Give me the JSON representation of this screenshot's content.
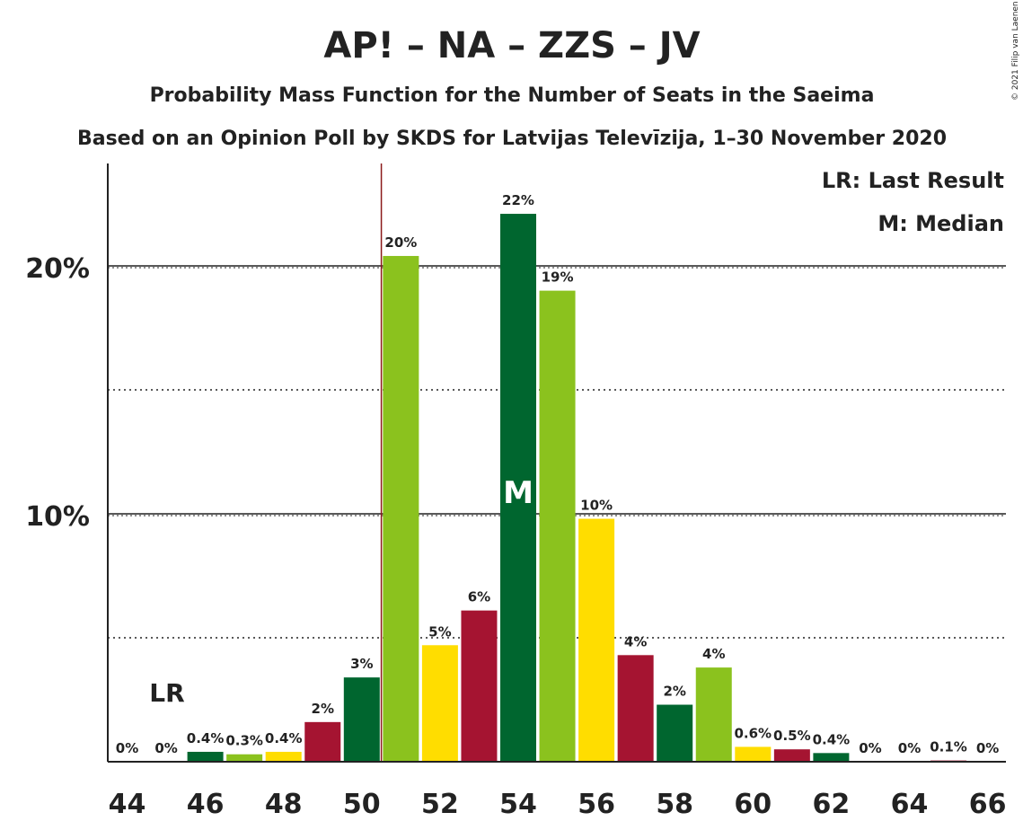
{
  "title": "AP! – NA – ZZS – JV",
  "subtitle1": "Probability Mass Function for the Number of Seats in the Saeima",
  "subtitle2": "Based on an Opinion Poll by SKDS for Latvijas Televīzija, 1–30 November 2020",
  "copyright": "© 2021 Filip van Laenen",
  "legend": {
    "lr": "LR: Last Result",
    "median": "M: Median"
  },
  "markers": {
    "last_result_label": "LR",
    "median_label": "M"
  },
  "colors": {
    "dark_green": "#00662F",
    "light_green": "#8BC21E",
    "yellow": "#FFDD00",
    "red": "#A51431",
    "last_result_line": "#8B1A1A"
  },
  "chart_data": {
    "type": "bar",
    "x": [
      44,
      45,
      46,
      47,
      48,
      49,
      50,
      51,
      52,
      53,
      54,
      55,
      56,
      57,
      58,
      59,
      60,
      61,
      62,
      63,
      64,
      65,
      66
    ],
    "values": [
      0,
      0,
      0.4,
      0.3,
      0.4,
      1.6,
      3.4,
      20.4,
      4.7,
      6.1,
      22.1,
      19.0,
      9.8,
      4.3,
      2.3,
      3.8,
      0.6,
      0.5,
      0.35,
      0,
      0,
      0.05,
      0
    ],
    "value_labels": [
      "0%",
      "0%",
      "0.4%",
      "0.3%",
      "0.4%",
      "2%",
      "3%",
      "20%",
      "5%",
      "6%",
      "22%",
      "19%",
      "10%",
      "4%",
      "2%",
      "4%",
      "0.6%",
      "0.5%",
      "0.4%",
      "0%",
      "0%",
      "0.1%",
      "0%"
    ],
    "bar_colors": [
      "dark_green",
      "light_green",
      "dark_green",
      "light_green",
      "yellow",
      "red",
      "dark_green",
      "light_green",
      "yellow",
      "red",
      "dark_green",
      "light_green",
      "yellow",
      "red",
      "dark_green",
      "light_green",
      "yellow",
      "red",
      "dark_green",
      "light_green",
      "yellow",
      "red",
      "dark_green"
    ],
    "x_ticks": [
      44,
      46,
      48,
      50,
      52,
      54,
      56,
      58,
      60,
      62,
      64,
      66
    ],
    "x_tick_labels": [
      "44",
      "46",
      "48",
      "50",
      "52",
      "54",
      "56",
      "58",
      "60",
      "62",
      "64",
      "66"
    ],
    "y_ticks": [
      10,
      20
    ],
    "y_tick_labels": [
      "10%",
      "20%"
    ],
    "ylim": [
      0,
      24
    ],
    "last_result": 51,
    "median": 54,
    "grid": "dotted at 5% steps, solid at 10% and 20%",
    "legend_position": "top-right"
  }
}
